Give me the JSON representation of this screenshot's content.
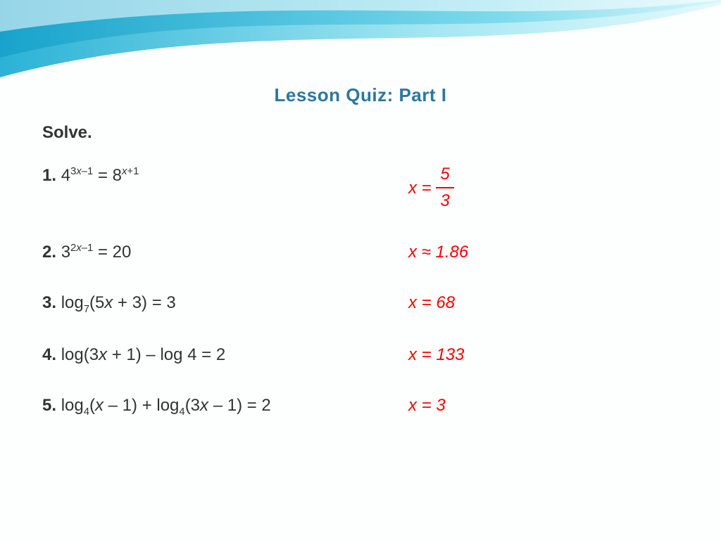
{
  "slide": {
    "title": "Lesson Quiz: Part I",
    "instruction": "Solve.",
    "title_color": "#2a78a0",
    "title_fontsize": 26,
    "body_color": "#333333",
    "body_fontsize": 24,
    "answer_color": "#ff0000",
    "background_color": "#fdfefe"
  },
  "swoosh_colors": {
    "deep": "#1aa0c9",
    "mid": "#6fd4e8",
    "light": "#c9f1f8",
    "white": "#ffffff"
  },
  "questions": {
    "q1": {
      "num": "1.",
      "base1": "4",
      "exp1": "3x–1",
      "eq": " = ",
      "base2": "8",
      "exp2": "x+1"
    },
    "q2": {
      "num": "2.",
      "base1": "3",
      "exp1": "2x–1",
      "eq": " = ",
      "rhs": "20"
    },
    "q3": {
      "num": "3.",
      "pre": "log",
      "sub": "7",
      "arg": "(5x + 3) = 3"
    },
    "q4": {
      "num": "4.",
      "text": "log(3x + 1) – log 4 = 2"
    },
    "q5": {
      "num": "5.",
      "pre1": "log",
      "sub1": "4",
      "arg1": "(x – 1) + ",
      "pre2": "log",
      "sub2": "4",
      "arg2": "(3x – 1) = 2"
    }
  },
  "answers": {
    "a1": {
      "lhs": "x = ",
      "frac_top": "5",
      "frac_bot": "3"
    },
    "a2": "x ≈ 1.86",
    "a3": "x = 68",
    "a4": "x = 133",
    "a5": "x = 3"
  }
}
